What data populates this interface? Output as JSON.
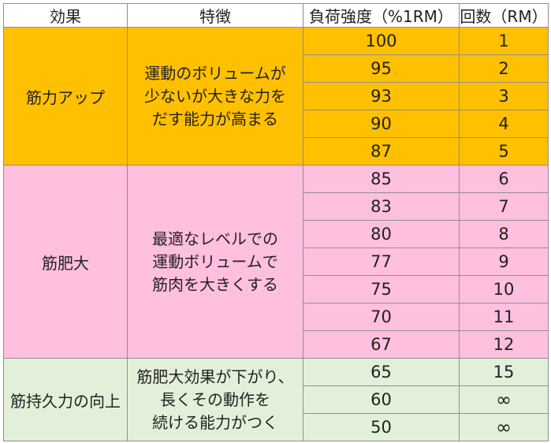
{
  "header": {
    "effect": "効果",
    "feature": "特徴",
    "intensity": "負荷強度（%1RM）",
    "reps": "回数（RM）"
  },
  "groups": [
    {
      "effect": "筋力アップ",
      "feature_lines": [
        "運動のボリュームが",
        "少ないが大きな力を",
        "だす能力が高まる"
      ],
      "color": "#ffc000",
      "rows": [
        {
          "intensity": "100",
          "reps": "1"
        },
        {
          "intensity": "95",
          "reps": "2"
        },
        {
          "intensity": "93",
          "reps": "3"
        },
        {
          "intensity": "90",
          "reps": "4"
        },
        {
          "intensity": "87",
          "reps": "5"
        }
      ]
    },
    {
      "effect": "筋肥大",
      "feature_lines": [
        "最適なレベルでの",
        "運動ボリュームで",
        "筋肉を大きくする"
      ],
      "color": "#ffbfdf",
      "rows": [
        {
          "intensity": "85",
          "reps": "6"
        },
        {
          "intensity": "83",
          "reps": "7"
        },
        {
          "intensity": "80",
          "reps": "8"
        },
        {
          "intensity": "77",
          "reps": "9"
        },
        {
          "intensity": "75",
          "reps": "10"
        },
        {
          "intensity": "70",
          "reps": "11"
        },
        {
          "intensity": "67",
          "reps": "12"
        }
      ]
    },
    {
      "effect": "筋持久力の向上",
      "feature_lines": [
        "筋肥大効果が下がり、",
        "長くその動作を",
        "続ける能力がつく"
      ],
      "color": "#e2f0d9",
      "rows": [
        {
          "intensity": "65",
          "reps": "15"
        },
        {
          "intensity": "60",
          "reps": "∞"
        },
        {
          "intensity": "50",
          "reps": "∞"
        }
      ]
    }
  ]
}
